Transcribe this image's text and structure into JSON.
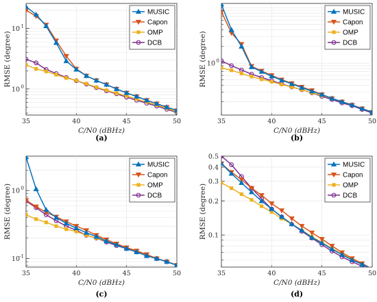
{
  "chart_data": [
    {
      "type": "line",
      "caption": "(a)",
      "xlabel": "C/N0 (dBHz)",
      "ylabel": "RMSE (degree)",
      "log_y": true,
      "xlim": [
        35,
        50
      ],
      "ylim": [
        0.37,
        26
      ],
      "grid": true,
      "legend": "top-right",
      "x": [
        35,
        36,
        37,
        38,
        39,
        40,
        41,
        42,
        43,
        44,
        45,
        46,
        47,
        48,
        49,
        50
      ],
      "yticks": [
        {
          "v": 1,
          "t": "10"
        },
        {
          "v": 10,
          "t": "10"
        }
      ],
      "yticks_sup": [
        "0",
        "1"
      ],
      "series": [
        {
          "name": "MUSIC",
          "values": [
            23,
            17,
            11,
            5.8,
            2.9,
            2.1,
            1.65,
            1.38,
            1.18,
            1.0,
            0.86,
            0.75,
            0.65,
            0.57,
            0.5,
            0.44
          ]
        },
        {
          "name": "Capon",
          "values": [
            20,
            16,
            11.5,
            6.3,
            3.5,
            2.15,
            1.65,
            1.38,
            1.18,
            1.0,
            0.86,
            0.75,
            0.65,
            0.57,
            0.5,
            0.44
          ]
        },
        {
          "name": "OMP",
          "values": [
            2.5,
            2.15,
            1.95,
            1.72,
            1.52,
            1.38,
            1.22,
            1.07,
            0.95,
            0.85,
            0.77,
            0.68,
            0.61,
            0.54,
            0.48,
            0.42
          ]
        },
        {
          "name": "DCB",
          "values": [
            3.1,
            2.7,
            2.1,
            1.8,
            1.55,
            1.37,
            1.2,
            1.05,
            0.93,
            0.83,
            0.73,
            0.65,
            0.58,
            0.52,
            0.46,
            0.41
          ]
        }
      ]
    },
    {
      "type": "line",
      "caption": "(b)",
      "xlabel": "C/N0 (dBHz)",
      "ylabel": "RMSE (degree)",
      "log_y": true,
      "xlim": [
        35,
        50
      ],
      "ylim": [
        0.115,
        12
      ],
      "grid": true,
      "legend": "top-right",
      "x": [
        35,
        36,
        37,
        38,
        39,
        40,
        41,
        42,
        43,
        44,
        45,
        46,
        47,
        48,
        49,
        50
      ],
      "yticks": [
        {
          "v": 1,
          "t": "10"
        }
      ],
      "yticks_sup": [
        "0"
      ],
      "series": [
        {
          "name": "MUSIC",
          "values": [
            11.5,
            4.0,
            2.0,
            0.85,
            0.7,
            0.58,
            0.49,
            0.42,
            0.36,
            0.31,
            0.27,
            0.23,
            0.2,
            0.175,
            0.15,
            0.13
          ]
        },
        {
          "name": "Capon",
          "values": [
            8.5,
            3.5,
            2.2,
            0.88,
            0.72,
            0.6,
            0.5,
            0.43,
            0.37,
            0.32,
            0.27,
            0.23,
            0.2,
            0.175,
            0.15,
            0.13
          ]
        },
        {
          "name": "OMP",
          "values": [
            0.82,
            0.74,
            0.65,
            0.57,
            0.51,
            0.46,
            0.41,
            0.37,
            0.33,
            0.29,
            0.26,
            0.23,
            0.2,
            0.175,
            0.15,
            0.13
          ]
        },
        {
          "name": "DCB",
          "values": [
            1.1,
            0.9,
            0.75,
            0.63,
            0.55,
            0.48,
            0.42,
            0.37,
            0.33,
            0.29,
            0.25,
            0.22,
            0.19,
            0.17,
            0.145,
            0.125
          ]
        }
      ]
    },
    {
      "type": "line",
      "caption": "(c)",
      "xlabel": "C/N0 (dBHz)",
      "ylabel": "RMSE (degree)",
      "log_y": true,
      "xlim": [
        35,
        50
      ],
      "ylim": [
        0.075,
        3.2
      ],
      "grid": true,
      "legend": "top-right",
      "x": [
        35,
        36,
        37,
        38,
        39,
        40,
        41,
        42,
        43,
        44,
        45,
        46,
        47,
        48,
        49,
        50
      ],
      "yticks": [
        {
          "v": 0.1,
          "t": "10"
        },
        {
          "v": 1,
          "t": "10"
        }
      ],
      "yticks_sup": [
        "-1",
        "0"
      ],
      "series": [
        {
          "name": "MUSIC",
          "values": [
            3.1,
            1.05,
            0.52,
            0.4,
            0.33,
            0.28,
            0.24,
            0.21,
            0.18,
            0.16,
            0.14,
            0.125,
            0.11,
            0.1,
            0.09,
            0.08
          ]
        },
        {
          "name": "Capon",
          "values": [
            0.72,
            0.58,
            0.48,
            0.41,
            0.35,
            0.3,
            0.26,
            0.22,
            0.19,
            0.165,
            0.145,
            0.13,
            0.115,
            0.1,
            0.09,
            0.08
          ]
        },
        {
          "name": "OMP",
          "values": [
            0.44,
            0.38,
            0.34,
            0.3,
            0.27,
            0.25,
            0.22,
            0.2,
            0.18,
            0.16,
            0.14,
            0.125,
            0.11,
            0.1,
            0.09,
            0.08
          ]
        },
        {
          "name": "DCB",
          "values": [
            0.7,
            0.56,
            0.44,
            0.36,
            0.3,
            0.26,
            0.22,
            0.2,
            0.175,
            0.155,
            0.14,
            0.125,
            0.11,
            0.1,
            0.09,
            0.08
          ]
        }
      ]
    },
    {
      "type": "line",
      "caption": "(d)",
      "xlabel": "C/N0 (dBHz)",
      "ylabel": "RMSE (degree)",
      "log_y": true,
      "xlim": [
        35,
        50
      ],
      "ylim": [
        0.052,
        0.5
      ],
      "grid": true,
      "legend": "top-right",
      "x": [
        35,
        36,
        37,
        38,
        39,
        40,
        41,
        42,
        43,
        44,
        45,
        46,
        47,
        48,
        49,
        50
      ],
      "yticks": [
        {
          "v": 0.1,
          "t": "0.1"
        },
        {
          "v": 0.2,
          "t": "0.2"
        },
        {
          "v": 0.3,
          "t": "0.3"
        },
        {
          "v": 0.4,
          "t": "0.4"
        },
        {
          "v": 0.5,
          "t": "0.5"
        }
      ],
      "yticks_sup": [
        "",
        "",
        "",
        "",
        ""
      ],
      "series": [
        {
          "name": "MUSIC",
          "values": [
            0.43,
            0.35,
            0.29,
            0.24,
            0.2,
            0.17,
            0.145,
            0.125,
            0.11,
            0.095,
            0.085,
            0.075,
            0.067,
            0.06,
            0.055,
            0.05
          ]
        },
        {
          "name": "Capon",
          "values": [
            0.43,
            0.36,
            0.31,
            0.26,
            0.225,
            0.19,
            0.165,
            0.14,
            0.12,
            0.105,
            0.092,
            0.08,
            0.07,
            0.062,
            0.056,
            0.05
          ]
        },
        {
          "name": "OMP",
          "values": [
            0.29,
            0.26,
            0.23,
            0.205,
            0.18,
            0.16,
            0.14,
            0.125,
            0.11,
            0.097,
            0.086,
            0.076,
            0.068,
            0.061,
            0.055,
            0.05
          ]
        },
        {
          "name": "DCB",
          "values": [
            0.5,
            0.42,
            0.33,
            0.26,
            0.21,
            0.17,
            0.145,
            0.125,
            0.108,
            0.094,
            0.082,
            0.072,
            0.064,
            0.058,
            0.053,
            0.049
          ]
        }
      ]
    }
  ],
  "xticks": [
    35,
    40,
    45,
    50
  ],
  "colors": {
    "MUSIC": "#0072BD",
    "Capon": "#D95319",
    "OMP": "#EDB120",
    "DCB": "#7E2F8E"
  },
  "markers": {
    "MUSIC": "triangle-up",
    "Capon": "triangle-down",
    "OMP": "square",
    "DCB": "circle"
  }
}
